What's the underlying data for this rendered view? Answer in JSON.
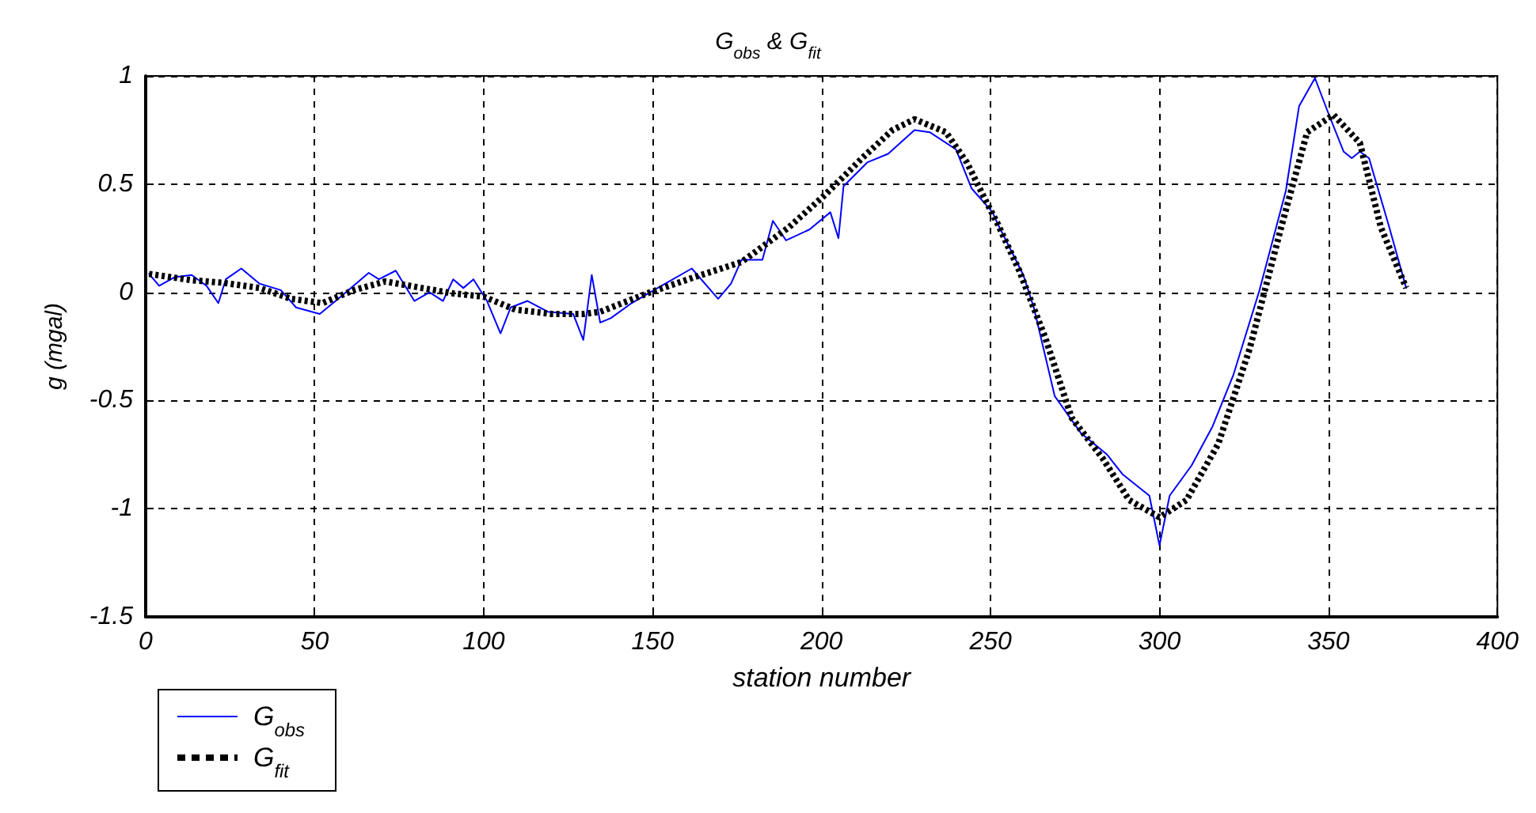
{
  "chart_data": {
    "type": "line",
    "title": "G$_{obs}$ & G$_{fit}$",
    "xlabel": "station number",
    "ylabel": "g (mgal)",
    "xlim": [
      0,
      400
    ],
    "xticks": [
      0,
      50,
      100,
      150,
      200,
      250,
      300,
      350,
      400
    ],
    "ylim": [
      -1.5,
      1
    ],
    "yticks": [
      -1.5,
      -1,
      -0.5,
      0,
      0.5,
      1
    ],
    "grid": true,
    "legend": "bottom left",
    "marker": "none",
    "series": [
      {
        "name": "G$_{obs}$",
        "color": "#0000ff",
        "line_style": "solid",
        "x": [
          1,
          4,
          8.6,
          13.6,
          18,
          21.5,
          23.7,
          28.3,
          33.7,
          40,
          44.5,
          51.5,
          57,
          66,
          69,
          74,
          79.5,
          84,
          88,
          91,
          94,
          97,
          101,
          105,
          108,
          113,
          119,
          126.5,
          129.5,
          132,
          134.5,
          137.6,
          143.8,
          151.5,
          161.6,
          169.4,
          173.2,
          176.3,
          182.5,
          185.6,
          189.5,
          196.4,
          202.6,
          205,
          206.5,
          213.5,
          219.7,
          227.5,
          232,
          239.8,
          244.4,
          250.6,
          252,
          259.7,
          262.8,
          269,
          276.7,
          284.5,
          289,
          297,
          300,
          303,
          309.5,
          315.7,
          321.9,
          329.6,
          337.4,
          341.3,
          346,
          349.9,
          354.5,
          356.9,
          359.3,
          362,
          368,
          373
        ],
        "values": [
          0.085,
          0.03,
          0.07,
          0.08,
          0.03,
          -0.05,
          0.06,
          0.11,
          0.04,
          0.01,
          -0.07,
          -0.1,
          -0.03,
          0.09,
          0.06,
          0.1,
          -0.04,
          0,
          -0.04,
          0.06,
          0.02,
          0.06,
          -0.04,
          -0.19,
          -0.07,
          -0.04,
          -0.09,
          -0.1,
          -0.22,
          0.08,
          -0.14,
          -0.12,
          -0.05,
          0.02,
          0.11,
          -0.03,
          0.04,
          0.15,
          0.15,
          0.33,
          0.24,
          0.29,
          0.37,
          0.25,
          0.49,
          0.6,
          0.64,
          0.75,
          0.74,
          0.66,
          0.48,
          0.37,
          0.32,
          0.08,
          -0.07,
          -0.48,
          -0.65,
          -0.75,
          -0.84,
          -0.94,
          -1.17,
          -0.94,
          -0.8,
          -0.62,
          -0.38,
          0.01,
          0.47,
          0.86,
          0.99,
          0.83,
          0.65,
          0.62,
          0.65,
          0.62,
          0.3,
          0.02
        ]
      },
      {
        "name": "G$_{fit}$",
        "color": "#000000",
        "line_style": "dotted",
        "x": [
          1,
          13.6,
          22.9,
          33.7,
          43,
          52.3,
          61.6,
          70.9,
          81.7,
          91,
          100,
          109.4,
          120.2,
          129.5,
          134.5,
          148.4,
          162.4,
          176.3,
          190.3,
          201,
          212,
          221,
          227.5,
          236.8,
          243,
          249,
          252,
          258.5,
          266.2,
          274,
          283.3,
          291,
          300,
          308,
          317.4,
          326.7,
          336,
          343.7,
          351.5,
          359.3,
          365.5,
          373
        ],
        "values": [
          0.085,
          0.056,
          0.044,
          0.02,
          -0.03,
          -0.05,
          0.01,
          0.05,
          0.02,
          -0.005,
          -0.02,
          -0.08,
          -0.1,
          -0.1,
          -0.09,
          -0.005,
          0.07,
          0.14,
          0.3,
          0.45,
          0.62,
          0.75,
          0.8,
          0.74,
          0.6,
          0.41,
          0.32,
          0.1,
          -0.21,
          -0.58,
          -0.77,
          -0.96,
          -1.04,
          -0.96,
          -0.7,
          -0.26,
          0.3,
          0.74,
          0.82,
          0.69,
          0.3,
          0.02
        ]
      }
    ]
  }
}
